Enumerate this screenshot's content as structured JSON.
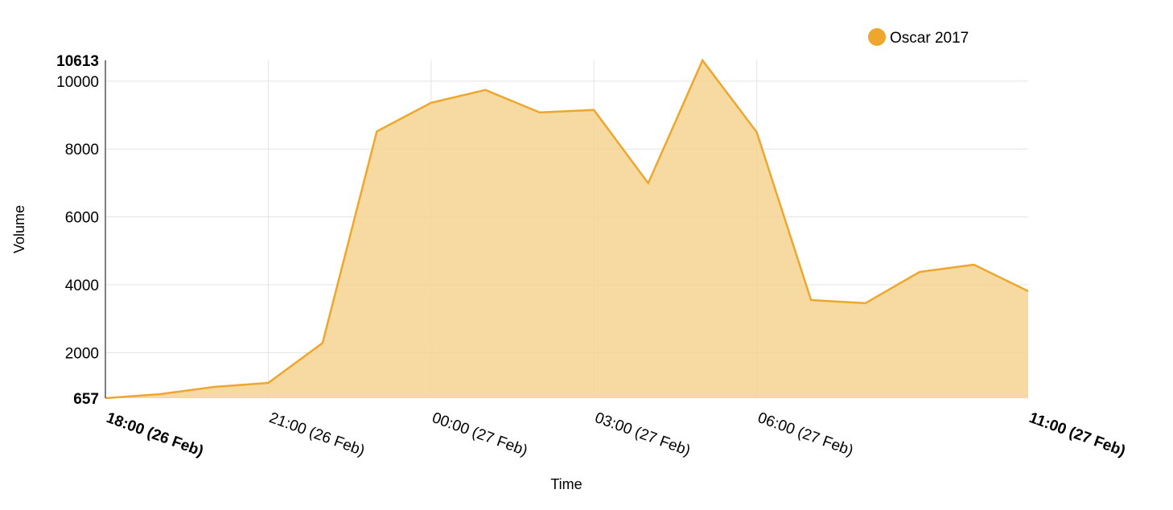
{
  "chart_data": {
    "type": "area",
    "title": "",
    "xlabel": "Time",
    "ylabel": "Volume",
    "ylim": [
      657,
      10613
    ],
    "grid": true,
    "legend_position": "top-right",
    "x": [
      "18:00 (26 Feb)",
      "19:00 (26 Feb)",
      "20:00 (26 Feb)",
      "21:00 (26 Feb)",
      "22:00 (26 Feb)",
      "23:00 (26 Feb)",
      "00:00 (27 Feb)",
      "01:00 (27 Feb)",
      "02:00 (27 Feb)",
      "03:00 (27 Feb)",
      "04:00 (27 Feb)",
      "05:00 (27 Feb)",
      "06:00 (27 Feb)",
      "07:00 (27 Feb)",
      "08:00 (27 Feb)",
      "09:00 (27 Feb)",
      "10:00 (27 Feb)",
      "11:00 (27 Feb)"
    ],
    "series": [
      {
        "name": "Oscar 2017",
        "color": "#eea72c",
        "fill": "#f5d490",
        "values": [
          657,
          775,
          988,
          1107,
          2284,
          8520,
          9361,
          9740,
          9077,
          9150,
          6994,
          10613,
          8497,
          3550,
          3456,
          4379,
          4592,
          3811
        ]
      }
    ],
    "y_ticks": [
      {
        "label": "657",
        "value": 657,
        "bold": true
      },
      {
        "label": "2000",
        "value": 2000
      },
      {
        "label": "4000",
        "value": 4000
      },
      {
        "label": "6000",
        "value": 6000
      },
      {
        "label": "8000",
        "value": 8000
      },
      {
        "label": "10000",
        "value": 10000
      },
      {
        "label": "10613",
        "value": 10613,
        "bold": true
      }
    ],
    "x_ticks": [
      {
        "label": "18:00 (26 Feb)",
        "index": 0,
        "bold": true
      },
      {
        "label": "21:00 (26 Feb)",
        "index": 3
      },
      {
        "label": "00:00 (27 Feb)",
        "index": 6
      },
      {
        "label": "03:00 (27 Feb)",
        "index": 9
      },
      {
        "label": "06:00 (27 Feb)",
        "index": 12
      },
      {
        "label": "11:00 (27 Feb)",
        "index": 17,
        "bold": true
      }
    ]
  }
}
